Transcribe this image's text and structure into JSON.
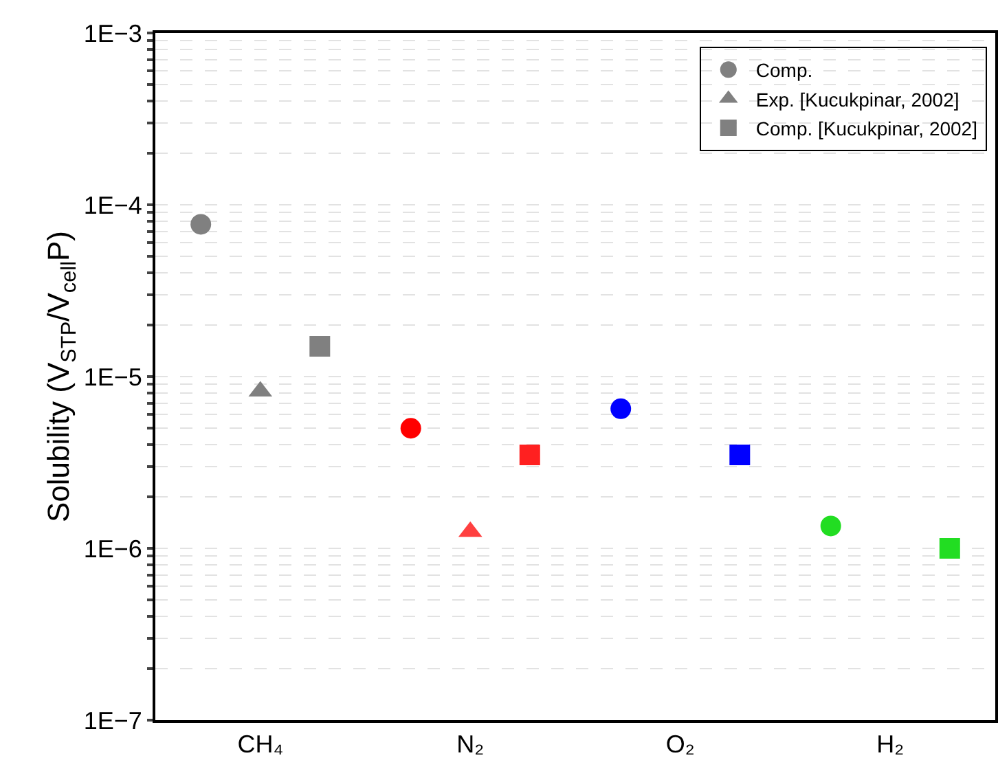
{
  "chart_data": {
    "type": "scatter",
    "ylabel": "Solubility (V$_{STP}$/V$_{cell}$P)",
    "log": "y",
    "legend": "top right",
    "grid": "y",
    "categories": [
      "CH₄",
      "N₂",
      "O₂",
      "H₂"
    ],
    "ylim": [
      1e-07,
      0.001
    ],
    "yticks": [
      {
        "value": 1e-07,
        "label": "1E−7"
      },
      {
        "value": 2e-07,
        "label": null
      },
      {
        "value": 3e-07,
        "label": null
      },
      {
        "value": 4e-07,
        "label": null
      },
      {
        "value": 5e-07,
        "label": null
      },
      {
        "value": 6e-07,
        "label": null
      },
      {
        "value": 7e-07,
        "label": null
      },
      {
        "value": 8e-07,
        "label": null
      },
      {
        "value": 9e-07,
        "label": null
      },
      {
        "value": 1e-06,
        "label": "1E−6"
      },
      {
        "value": 2e-06,
        "label": null
      },
      {
        "value": 3e-06,
        "label": null
      },
      {
        "value": 4e-06,
        "label": null
      },
      {
        "value": 5e-06,
        "label": null
      },
      {
        "value": 6e-06,
        "label": null
      },
      {
        "value": 7e-06,
        "label": null
      },
      {
        "value": 8e-06,
        "label": null
      },
      {
        "value": 9e-06,
        "label": null
      },
      {
        "value": 1e-05,
        "label": "1E−5"
      },
      {
        "value": 2e-05,
        "label": null
      },
      {
        "value": 3e-05,
        "label": null
      },
      {
        "value": 4e-05,
        "label": null
      },
      {
        "value": 5e-05,
        "label": null
      },
      {
        "value": 6e-05,
        "label": null
      },
      {
        "value": 7e-05,
        "label": null
      },
      {
        "value": 8e-05,
        "label": null
      },
      {
        "value": 9e-05,
        "label": null
      },
      {
        "value": 0.0001,
        "label": "1E−4"
      },
      {
        "value": 0.0002,
        "label": null
      },
      {
        "value": 0.0003,
        "label": null
      },
      {
        "value": 0.0004,
        "label": null
      },
      {
        "value": 0.0005,
        "label": null
      },
      {
        "value": 0.0006,
        "label": null
      },
      {
        "value": 0.0007,
        "label": null
      },
      {
        "value": 0.0008,
        "label": null
      },
      {
        "value": 0.0009,
        "label": null
      },
      {
        "value": 0.001,
        "label": "1E−3"
      }
    ],
    "series": [
      {
        "name": "Comp.",
        "marker": "circle",
        "x": [
          "CH₄",
          "N₂",
          "O₂",
          "H₂"
        ],
        "values": [
          7.7e-05,
          5e-06,
          6.5e-06,
          1.35e-06
        ],
        "colors": [
          "#808080",
          "#ff0000",
          "#0000ff",
          "#22dd22"
        ]
      },
      {
        "name": "Exp. [Kucukpinar, 2002]",
        "marker": "triangle",
        "x": [
          "CH₄",
          "N₂"
        ],
        "values": [
          8.2e-06,
          1.25e-06
        ],
        "colors": [
          "#808080",
          "#ff4040"
        ]
      },
      {
        "name": "Comp. [Kucukpinar, 2002]",
        "marker": "square",
        "x": [
          "CH₄",
          "N₂",
          "O₂",
          "H₂"
        ],
        "values": [
          1.5e-05,
          3.5e-06,
          3.5e-06,
          1e-06
        ],
        "colors": [
          "#808080",
          "#ff2020",
          "#0000ff",
          "#22dd22"
        ]
      }
    ]
  }
}
